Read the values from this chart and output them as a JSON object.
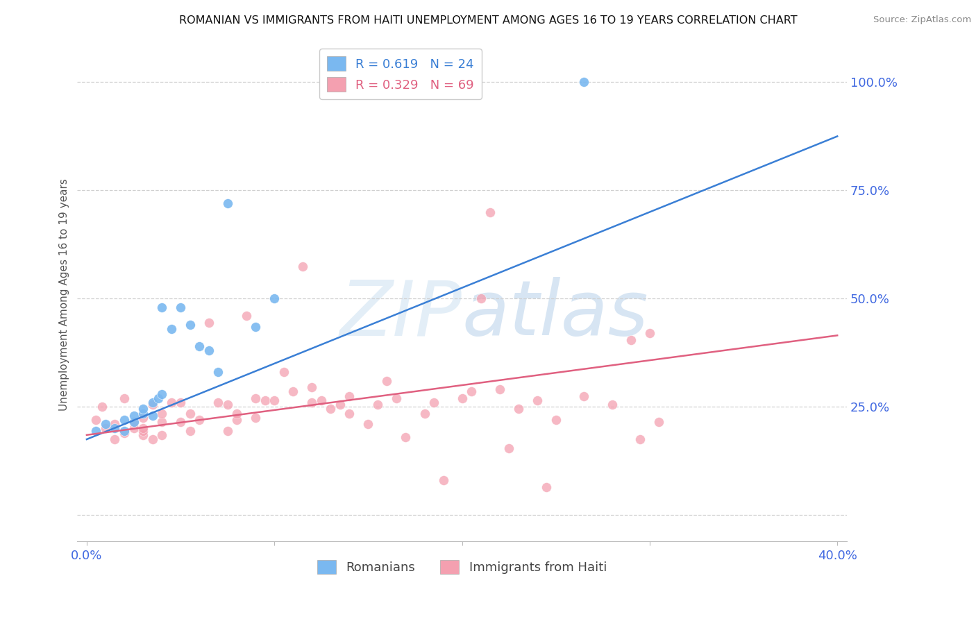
{
  "title": "ROMANIAN VS IMMIGRANTS FROM HAITI UNEMPLOYMENT AMONG AGES 16 TO 19 YEARS CORRELATION CHART",
  "source": "Source: ZipAtlas.com",
  "ylabel": "Unemployment Among Ages 16 to 19 years",
  "watermark": "ZIPatlas",
  "xlim": [
    -0.005,
    0.405
  ],
  "ylim": [
    -0.06,
    1.08
  ],
  "xticks": [
    0.0,
    0.1,
    0.2,
    0.3,
    0.4
  ],
  "xticklabels": [
    "0.0%",
    "",
    "",
    "",
    "40.0%"
  ],
  "yticks_right": [
    0.0,
    0.25,
    0.5,
    0.75,
    1.0
  ],
  "yticklabels_right": [
    "",
    "25.0%",
    "50.0%",
    "75.0%",
    "100.0%"
  ],
  "blue_R": 0.619,
  "blue_N": 24,
  "pink_R": 0.329,
  "pink_N": 69,
  "blue_color": "#7ab8f0",
  "pink_color": "#f4a0b0",
  "blue_line_color": "#3a7fd5",
  "pink_line_color": "#e06080",
  "legend_label_blue": "Romanians",
  "legend_label_pink": "Immigrants from Haiti",
  "blue_scatter_x": [
    0.005,
    0.01,
    0.015,
    0.02,
    0.02,
    0.025,
    0.025,
    0.03,
    0.03,
    0.035,
    0.035,
    0.038,
    0.04,
    0.04,
    0.045,
    0.05,
    0.055,
    0.06,
    0.065,
    0.07,
    0.075,
    0.09,
    0.1,
    0.265
  ],
  "blue_scatter_y": [
    0.195,
    0.21,
    0.2,
    0.195,
    0.22,
    0.215,
    0.23,
    0.235,
    0.245,
    0.23,
    0.26,
    0.27,
    0.28,
    0.48,
    0.43,
    0.48,
    0.44,
    0.39,
    0.38,
    0.33,
    0.72,
    0.435,
    0.5,
    1.0
  ],
  "pink_scatter_x": [
    0.005,
    0.008,
    0.01,
    0.015,
    0.015,
    0.02,
    0.02,
    0.025,
    0.025,
    0.03,
    0.03,
    0.03,
    0.03,
    0.035,
    0.035,
    0.04,
    0.04,
    0.04,
    0.045,
    0.05,
    0.05,
    0.055,
    0.055,
    0.06,
    0.065,
    0.07,
    0.075,
    0.075,
    0.08,
    0.08,
    0.085,
    0.09,
    0.09,
    0.095,
    0.1,
    0.105,
    0.11,
    0.115,
    0.12,
    0.12,
    0.125,
    0.13,
    0.135,
    0.14,
    0.14,
    0.15,
    0.155,
    0.16,
    0.165,
    0.17,
    0.18,
    0.185,
    0.19,
    0.2,
    0.205,
    0.21,
    0.215,
    0.22,
    0.225,
    0.23,
    0.24,
    0.245,
    0.25,
    0.265,
    0.28,
    0.29,
    0.295,
    0.3,
    0.305
  ],
  "pink_scatter_y": [
    0.22,
    0.25,
    0.2,
    0.175,
    0.21,
    0.19,
    0.27,
    0.2,
    0.215,
    0.185,
    0.195,
    0.225,
    0.2,
    0.175,
    0.255,
    0.185,
    0.215,
    0.235,
    0.26,
    0.215,
    0.26,
    0.195,
    0.235,
    0.22,
    0.445,
    0.26,
    0.195,
    0.255,
    0.22,
    0.235,
    0.46,
    0.225,
    0.27,
    0.265,
    0.265,
    0.33,
    0.285,
    0.575,
    0.26,
    0.295,
    0.265,
    0.245,
    0.255,
    0.275,
    0.235,
    0.21,
    0.255,
    0.31,
    0.27,
    0.18,
    0.235,
    0.26,
    0.08,
    0.27,
    0.285,
    0.5,
    0.7,
    0.29,
    0.155,
    0.245,
    0.265,
    0.065,
    0.22,
    0.275,
    0.255,
    0.405,
    0.175,
    0.42,
    0.215
  ],
  "blue_trend_x": [
    0.0,
    0.4
  ],
  "blue_trend_y": [
    0.175,
    0.875
  ],
  "pink_trend_x": [
    0.0,
    0.4
  ],
  "pink_trend_y": [
    0.185,
    0.415
  ],
  "grid_color": "#d0d0d0",
  "axis_label_color": "#4169e1",
  "right_axis_color": "#4169e1",
  "ytick_line_positions": [
    0.0,
    0.25,
    0.5,
    0.75,
    1.0
  ]
}
